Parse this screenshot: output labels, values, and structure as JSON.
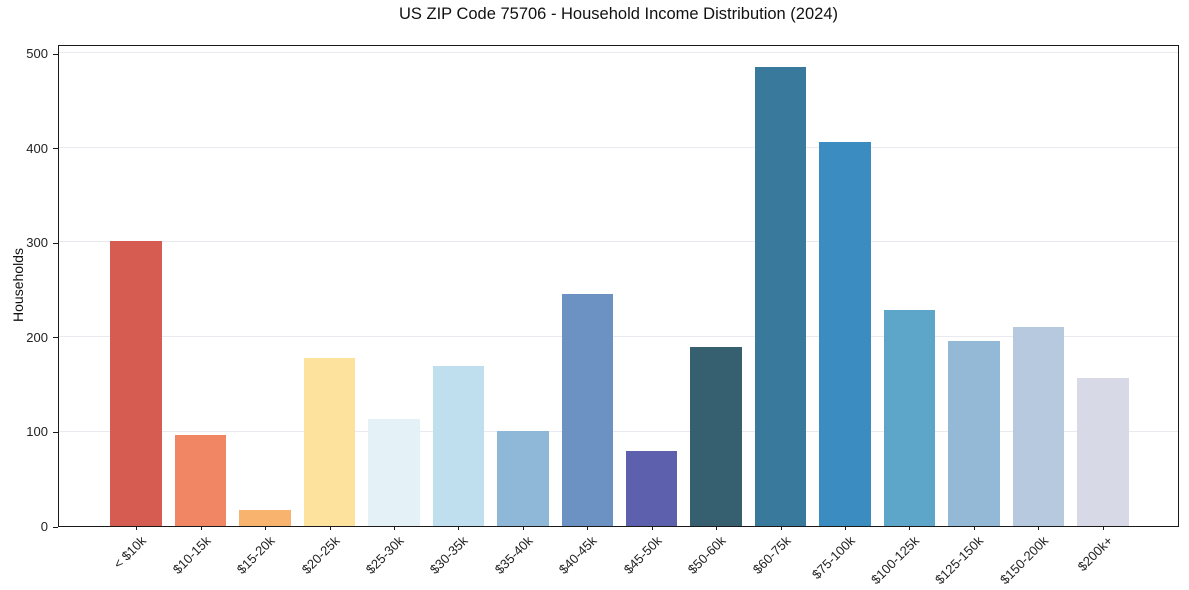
{
  "chart_data": {
    "type": "bar",
    "title": "US ZIP Code 75706 - Household Income Distribution (2024)",
    "xlabel": "",
    "ylabel": "Households",
    "categories": [
      "< $10k",
      "$10-15k",
      "$15-20k",
      "$20-25k",
      "$25-30k",
      "$30-35k",
      "$35-40k",
      "$40-45k",
      "$45-50k",
      "$50-60k",
      "$60-75k",
      "$75-100k",
      "$100-125k",
      "$125-150k",
      "$150-200k",
      "$200k+"
    ],
    "values": [
      302,
      96,
      17,
      178,
      113,
      169,
      101,
      245,
      79,
      189,
      486,
      406,
      229,
      196,
      211,
      157
    ],
    "bar_colors": [
      "#d65c52",
      "#f08663",
      "#f8b46f",
      "#fce29c",
      "#e4f1f6",
      "#bfdfee",
      "#8fb8d8",
      "#6b92c3",
      "#5d60ad",
      "#365f70",
      "#38799c",
      "#3a8cc1",
      "#5ea6c9",
      "#93b9d6",
      "#b7c9de",
      "#d7dae6"
    ],
    "yticks": [
      0,
      100,
      200,
      300,
      400,
      500
    ],
    "ylim": [
      0,
      510
    ],
    "grid": "horizontal",
    "legend": "none",
    "bar_width_fraction": 0.8,
    "colors": {
      "grid": "#e9e9ef",
      "spine": "#1a1a1a",
      "tick": "#1a1a1a",
      "tick_label": "#222222",
      "title": "#111111",
      "background": "#ffffff"
    }
  }
}
